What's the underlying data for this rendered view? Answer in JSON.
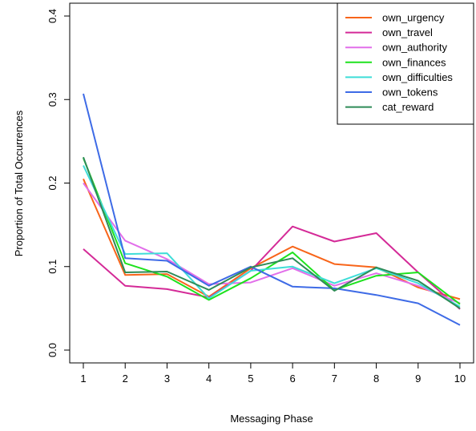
{
  "chart_data": {
    "type": "line",
    "xlabel": "Messaging Phase",
    "ylabel": "Proportion of Total Occurrences",
    "x": [
      1,
      2,
      3,
      4,
      5,
      6,
      7,
      8,
      9,
      10
    ],
    "xlim": [
      1,
      10
    ],
    "ylim": [
      0.0,
      0.4
    ],
    "xticks": [
      1,
      2,
      3,
      4,
      5,
      6,
      7,
      8,
      9,
      10
    ],
    "yticks": [
      0.0,
      0.1,
      0.2,
      0.3,
      0.4
    ],
    "ytick_labels": [
      "0.0",
      "0.1",
      "0.2",
      "0.3",
      "0.4"
    ],
    "grid": false,
    "legend_position": "top-right",
    "series": [
      {
        "name": "own_urgency",
        "color": "#F8651A",
        "values": [
          0.205,
          0.09,
          0.091,
          0.064,
          0.098,
          0.124,
          0.103,
          0.099,
          0.075,
          0.061
        ]
      },
      {
        "name": "own_travel",
        "color": "#D42A97",
        "values": [
          0.121,
          0.077,
          0.073,
          0.063,
          0.095,
          0.148,
          0.13,
          0.14,
          0.093,
          0.049
        ]
      },
      {
        "name": "own_authority",
        "color": "#E26FEA",
        "values": [
          0.2,
          0.131,
          0.109,
          0.079,
          0.081,
          0.098,
          0.077,
          0.092,
          0.077,
          0.056
        ]
      },
      {
        "name": "own_finances",
        "color": "#1DE21D",
        "values": [
          0.23,
          0.104,
          0.088,
          0.06,
          0.086,
          0.117,
          0.072,
          0.089,
          0.093,
          0.055
        ]
      },
      {
        "name": "own_difficulties",
        "color": "#3EDDD8",
        "values": [
          0.221,
          0.115,
          0.116,
          0.062,
          0.095,
          0.1,
          0.08,
          0.098,
          0.08,
          0.052
        ]
      },
      {
        "name": "own_tokens",
        "color": "#3E6BE6",
        "values": [
          0.307,
          0.11,
          0.107,
          0.077,
          0.1,
          0.076,
          0.074,
          0.066,
          0.056,
          0.03
        ]
      },
      {
        "name": "cat_reward",
        "color": "#2E8B57",
        "values": [
          0.231,
          0.093,
          0.094,
          0.072,
          0.099,
          0.11,
          0.071,
          0.099,
          0.083,
          0.05
        ]
      }
    ]
  }
}
